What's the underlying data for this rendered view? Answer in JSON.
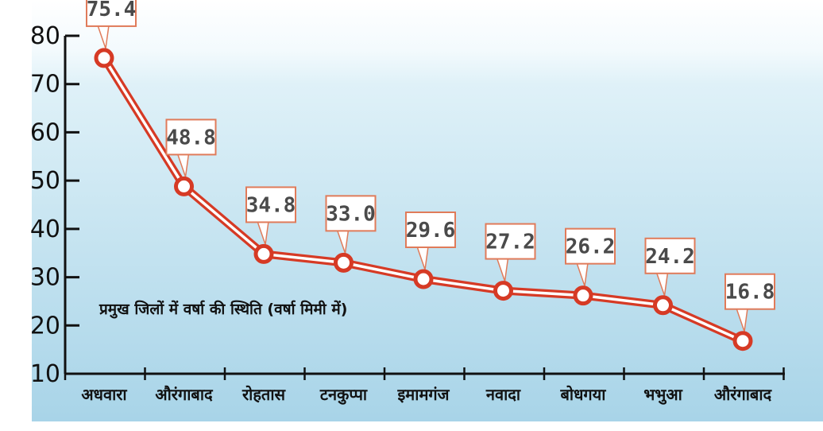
{
  "chart_data": {
    "type": "line",
    "title": "प्रमुख जिलों में वर्षा की स्थिति (वर्षा मिमी में)",
    "categories": [
      "अधवारा",
      "औरंगाबाद",
      "रोहतास",
      "टनकुप्पा",
      "इमामगंज",
      "नवादा",
      "बोधगया",
      "भभुआ",
      "औरंगाबाद"
    ],
    "series": [
      {
        "values": [
          75.4,
          48.8,
          34.8,
          33.0,
          29.6,
          27.2,
          26.2,
          24.2,
          16.8
        ]
      }
    ],
    "data_labels": [
      "75.4",
      "48.8",
      "34.8",
      "33.0",
      "29.6",
      "27.2",
      "26.2",
      "24.2",
      "16.8"
    ],
    "yticks": [
      10,
      20,
      30,
      40,
      50,
      60,
      70,
      80
    ],
    "ylim": [
      10,
      80
    ],
    "xlabel": "",
    "ylabel": "",
    "grid": false,
    "colors": {
      "line": "#d63a25",
      "marker_fill": "#ffffff",
      "label_border": "#e07b5a",
      "label_text": "#4a4a4a",
      "band_top": "#ffffff",
      "band_bottom": "#aad6ea"
    }
  }
}
